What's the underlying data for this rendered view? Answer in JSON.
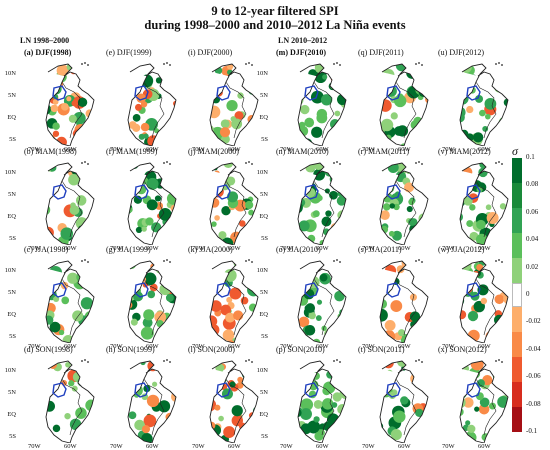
{
  "title_line1": "9 to 12-year filtered SPI",
  "title_line2": "during 1998–2000 and 2010–2012 La Niña events",
  "groups": [
    {
      "label": "LN 1998–2000"
    },
    {
      "label": "LN 2010–2012"
    }
  ],
  "panels": [
    {
      "label": "(a) DJF(1998)",
      "row": 0,
      "col": 0,
      "bold": true,
      "wet": 0.35,
      "dry": 0.35
    },
    {
      "label": "(e) DJF(1999)",
      "row": 0,
      "col": 1,
      "bold": false,
      "wet": 0.4,
      "dry": 0.2
    },
    {
      "label": "(i) DJF(2000)",
      "row": 0,
      "col": 2,
      "bold": false,
      "wet": 0.3,
      "dry": 0.25
    },
    {
      "label": "(m) DJF(2010)",
      "row": 0,
      "col": 3,
      "bold": true,
      "wet": 0.65,
      "dry": 0.05
    },
    {
      "label": "(q) DJF(2011)",
      "row": 0,
      "col": 4,
      "bold": false,
      "wet": 0.55,
      "dry": 0.1
    },
    {
      "label": "(u) DJF(2012)",
      "row": 0,
      "col": 5,
      "bold": false,
      "wet": 0.55,
      "dry": 0.05
    },
    {
      "label": "(b) MAM(1998)",
      "row": 1,
      "col": 0,
      "bold": false,
      "wet": 0.45,
      "dry": 0.2
    },
    {
      "label": "(f) MAM(1999)",
      "row": 1,
      "col": 1,
      "bold": false,
      "wet": 0.55,
      "dry": 0.1
    },
    {
      "label": "(j) MAM(2000)",
      "row": 1,
      "col": 2,
      "bold": false,
      "wet": 0.3,
      "dry": 0.2
    },
    {
      "label": "(n) MAM(2010)",
      "row": 1,
      "col": 3,
      "bold": false,
      "wet": 0.7,
      "dry": 0.03
    },
    {
      "label": "(r) MAM(2011)",
      "row": 1,
      "col": 4,
      "bold": false,
      "wet": 0.6,
      "dry": 0.1
    },
    {
      "label": "(v) MAM(2012)",
      "row": 1,
      "col": 5,
      "bold": false,
      "wet": 0.5,
      "dry": 0.1
    },
    {
      "label": "(c) JJA(1998)",
      "row": 2,
      "col": 0,
      "bold": false,
      "wet": 0.45,
      "dry": 0.15
    },
    {
      "label": "(g) JJA(1999)",
      "row": 2,
      "col": 1,
      "bold": false,
      "wet": 0.5,
      "dry": 0.15
    },
    {
      "label": "(k) JJA(2000)",
      "row": 2,
      "col": 2,
      "bold": false,
      "wet": 0.2,
      "dry": 0.3
    },
    {
      "label": "(o) JJA(2010)",
      "row": 2,
      "col": 3,
      "bold": false,
      "wet": 0.6,
      "dry": 0.05
    },
    {
      "label": "(s) JJA(2011)",
      "row": 2,
      "col": 4,
      "bold": false,
      "wet": 0.45,
      "dry": 0.15
    },
    {
      "label": "(w) JJA(2012)",
      "row": 2,
      "col": 5,
      "bold": false,
      "wet": 0.4,
      "dry": 0.25
    },
    {
      "label": "(d) SON(1998)",
      "row": 3,
      "col": 0,
      "bold": false,
      "wet": 0.35,
      "dry": 0.15
    },
    {
      "label": "(h) SON(1999)",
      "row": 3,
      "col": 1,
      "bold": false,
      "wet": 0.4,
      "dry": 0.1
    },
    {
      "label": "(l) SON(2000)",
      "row": 3,
      "col": 2,
      "bold": false,
      "wet": 0.25,
      "dry": 0.25
    },
    {
      "label": "(p) SON(2010)",
      "row": 3,
      "col": 3,
      "bold": false,
      "wet": 0.6,
      "dry": 0.05
    },
    {
      "label": "(t) SON(2011)",
      "row": 3,
      "col": 4,
      "bold": false,
      "wet": 0.45,
      "dry": 0.1
    },
    {
      "label": "(x) SON(2012)",
      "row": 3,
      "col": 5,
      "bold": false,
      "wet": 0.45,
      "dry": 0.1
    }
  ],
  "yticks": [
    "10N",
    "5N",
    "EQ",
    "5S"
  ],
  "xticks": [
    "70W",
    "60W"
  ],
  "colorbar": {
    "symbol": "σ",
    "ticks": [
      "0.1",
      "0.08",
      "0.06",
      "0.04",
      "0.02",
      "0",
      "-0.02",
      "-0.04",
      "-0.06",
      "-0.08",
      "-0.1"
    ],
    "colors": [
      "#006d2c",
      "#1a8a3a",
      "#31a354",
      "#5bbf5b",
      "#8fd17a",
      "#ffffff",
      "#fdae6b",
      "#f98a47",
      "#ef5a2f",
      "#d72d1e",
      "#a50f15"
    ]
  },
  "map_colors": {
    "coast": "#222222",
    "region": "#1f3fbf"
  }
}
